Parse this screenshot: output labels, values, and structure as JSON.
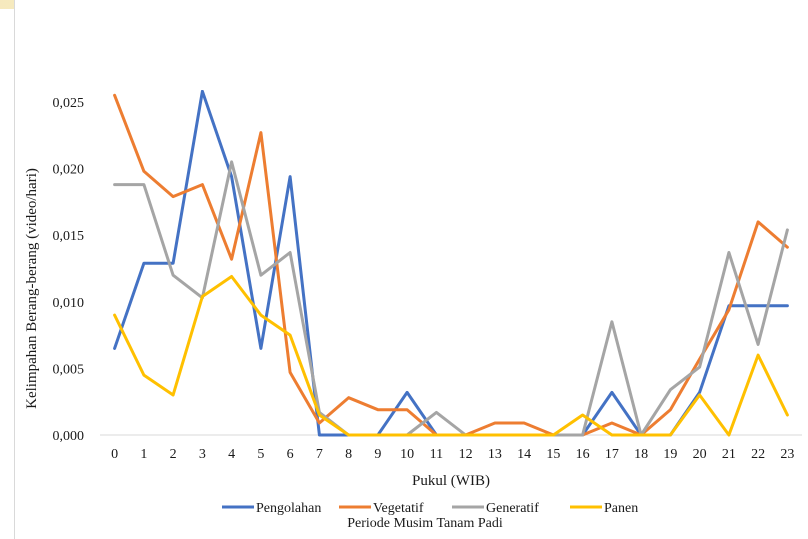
{
  "chart_data": {
    "type": "line",
    "title": "",
    "xlabel": "Pukul (WIB)",
    "ylabel": "Kelimpahan Berang-berang (video/hari)",
    "legend_title": "Periode Musim Tanam Padi",
    "legend_position": "bottom",
    "grid": false,
    "x": [
      0,
      1,
      2,
      3,
      4,
      5,
      6,
      7,
      8,
      9,
      10,
      11,
      12,
      13,
      14,
      15,
      16,
      17,
      18,
      19,
      20,
      21,
      22,
      23
    ],
    "x_tick_labels": [
      "0",
      "1",
      "2",
      "3",
      "4",
      "5",
      "6",
      "7",
      "8",
      "9",
      "10",
      "11",
      "12",
      "13",
      "14",
      "15",
      "16",
      "17",
      "18",
      "19",
      "20",
      "21",
      "22",
      "23"
    ],
    "ylim": [
      0,
      0.025
    ],
    "y_ticks": [
      0,
      0.005,
      0.01,
      0.015,
      0.02,
      0.025
    ],
    "y_tick_labels": [
      "0,000",
      "0,005",
      "0,010",
      "0,015",
      "0,020",
      "0,025"
    ],
    "series": [
      {
        "name": "Pengolahan",
        "color": "#4472c4",
        "values": [
          0.0065,
          0.0129,
          0.0129,
          0.0258,
          0.0194,
          0.0065,
          0.0194,
          0,
          0,
          0,
          0.0032,
          0,
          0,
          0,
          0,
          0,
          0,
          0.0032,
          0,
          0,
          0.0032,
          0.0097,
          0.0097,
          0.0097
        ]
      },
      {
        "name": "Vegetatif",
        "color": "#ed7d31",
        "values": [
          0.0255,
          0.0198,
          0.0179,
          0.0188,
          0.0132,
          0.0227,
          0.0047,
          0.0009,
          0.0028,
          0.0019,
          0.0019,
          0,
          0,
          0.0009,
          0.0009,
          0,
          0,
          0.0009,
          0,
          0.0019,
          0.0057,
          0.0094,
          0.016,
          0.0141
        ]
      },
      {
        "name": "Generatif",
        "color": "#a5a5a5",
        "values": [
          0.0188,
          0.0188,
          0.012,
          0.0103,
          0.0205,
          0.012,
          0.0137,
          0.0017,
          0,
          0,
          0,
          0.0017,
          0,
          0,
          0,
          0,
          0,
          0.0085,
          0,
          0.0034,
          0.0051,
          0.0137,
          0.0068,
          0.0154
        ]
      },
      {
        "name": "Panen",
        "color": "#ffc000",
        "values": [
          0.009,
          0.0045,
          0.003,
          0.0104,
          0.0119,
          0.009,
          0.0075,
          0.0015,
          0,
          0,
          0,
          0,
          0,
          0,
          0,
          0,
          0.0015,
          0,
          0,
          0,
          0.003,
          0,
          0.006,
          0.0015
        ]
      }
    ]
  }
}
